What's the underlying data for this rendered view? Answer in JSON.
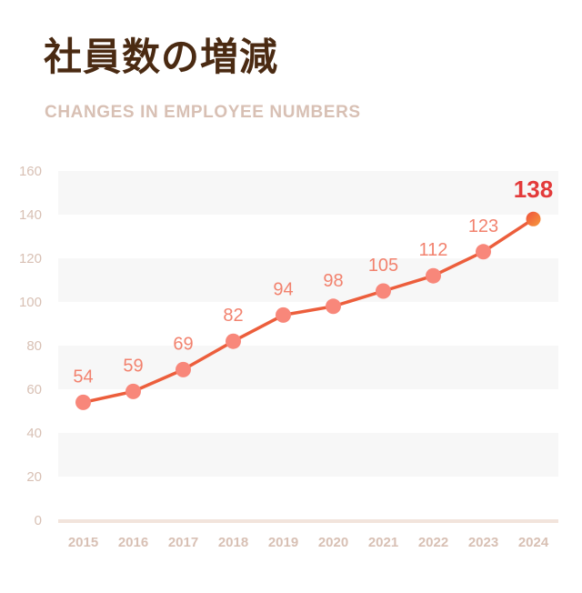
{
  "header": {
    "title": "社員数の増減",
    "subtitle": "CHANGES IN EMPLOYEE NUMBERS"
  },
  "colors": {
    "title": "#4a2a12",
    "subtitle": "#d8c0b4",
    "line": "#ec5e3c",
    "point": "#f8877a",
    "label": "#f2826e",
    "highlight": "#e33a3a",
    "band": "#f7f7f7",
    "axis_text": "#d8c0b4",
    "baseline": "#f2e4dc"
  },
  "chart_data": {
    "type": "line",
    "title": "社員数の増減",
    "subtitle": "CHANGES IN EMPLOYEE NUMBERS",
    "categories": [
      "2015",
      "2016",
      "2017",
      "2018",
      "2019",
      "2020",
      "2021",
      "2022",
      "2023",
      "2024"
    ],
    "values": [
      54,
      59,
      69,
      82,
      94,
      98,
      105,
      112,
      123,
      138
    ],
    "data_labels": [
      "54",
      "59",
      "69",
      "82",
      "94",
      "98",
      "105",
      "112",
      "123",
      "138"
    ],
    "highlight_index": 9,
    "ylim": [
      0,
      160
    ],
    "yticks": [
      "0",
      "20",
      "40",
      "60",
      "80",
      "100",
      "120",
      "140",
      "160"
    ],
    "xlabel": "",
    "ylabel": "",
    "grid": "alternating horizontal bands",
    "legend": "none"
  }
}
